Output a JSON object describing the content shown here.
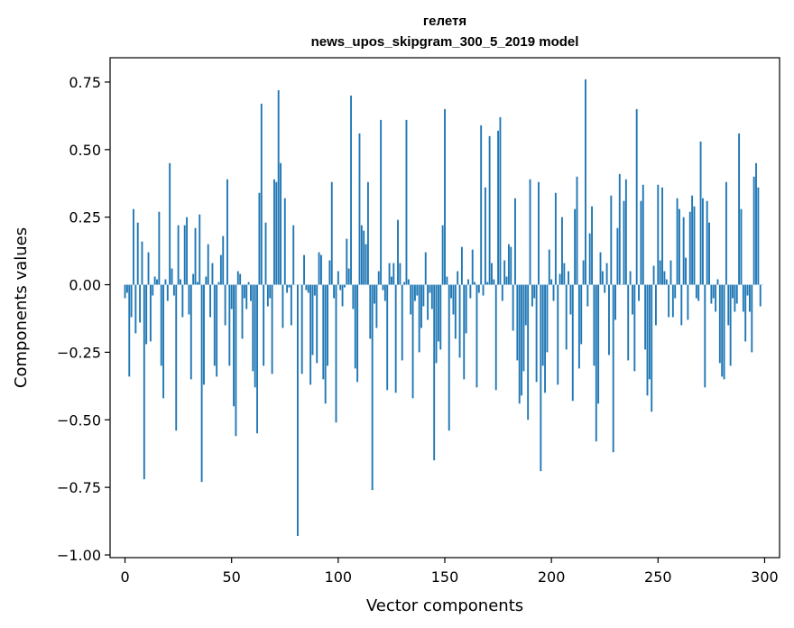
{
  "chart_data": {
    "type": "bar",
    "title": "гелетя",
    "subtitle": "news_upos_skipgram_300_5_2019 model",
    "xlabel": "Vector components",
    "ylabel": "Components values",
    "xlim": [
      -7,
      307
    ],
    "ylim": [
      -1.01,
      0.84
    ],
    "xticks": [
      0,
      50,
      100,
      150,
      200,
      250,
      300
    ],
    "xtick_labels": [
      "0",
      "50",
      "100",
      "150",
      "200",
      "250",
      "300"
    ],
    "yticks": [
      0.75,
      0.5,
      0.25,
      0.0,
      -0.25,
      -0.5,
      -0.75,
      -1.0
    ],
    "ytick_labels": [
      "0.75",
      "0.50",
      "0.25",
      "0.00",
      "−0.25",
      "−0.50",
      "−0.75",
      "−1.00"
    ],
    "grid": false,
    "color": "#1f77b4",
    "x": "0..299",
    "values": [
      -0.05,
      -0.03,
      -0.34,
      -0.12,
      0.28,
      -0.18,
      0.23,
      -0.14,
      0.16,
      -0.72,
      -0.22,
      0.12,
      -0.21,
      -0.04,
      0.03,
      0.02,
      0.27,
      -0.3,
      -0.42,
      0.02,
      -0.06,
      0.45,
      0.06,
      -0.04,
      -0.54,
      0.22,
      0.02,
      -0.12,
      0.22,
      0.25,
      -0.11,
      -0.35,
      0.04,
      0.21,
      0.01,
      0.26,
      -0.73,
      -0.37,
      0.03,
      0.15,
      -0.12,
      0.08,
      -0.3,
      -0.34,
      0.01,
      0.11,
      0.18,
      -0.15,
      0.39,
      -0.3,
      -0.09,
      -0.45,
      -0.56,
      0.05,
      0.04,
      -0.2,
      -0.05,
      -0.09,
      0.01,
      -0.06,
      -0.32,
      -0.38,
      -0.55,
      0.34,
      0.67,
      -0.3,
      0.23,
      -0.08,
      -0.05,
      -0.33,
      0.39,
      0.38,
      0.72,
      0.45,
      -0.16,
      0.32,
      -0.03,
      -0.01,
      -0.15,
      0.22,
      0.0,
      -0.93,
      0.0,
      -0.33,
      0.11,
      -0.02,
      -0.03,
      -0.37,
      -0.26,
      -0.04,
      -0.29,
      0.12,
      0.11,
      -0.35,
      -0.44,
      -0.3,
      0.09,
      0.38,
      -0.05,
      -0.51,
      0.05,
      -0.02,
      -0.08,
      -0.01,
      0.17,
      0.06,
      0.7,
      -0.09,
      -0.31,
      -0.36,
      0.56,
      0.22,
      0.2,
      0.15,
      0.38,
      -0.2,
      -0.76,
      -0.07,
      -0.16,
      0.05,
      0.61,
      -0.02,
      -0.06,
      -0.39,
      0.08,
      0.03,
      0.08,
      -0.4,
      0.24,
      0.08,
      -0.28,
      0.01,
      0.61,
      0.02,
      -0.11,
      -0.42,
      -0.06,
      -0.04,
      -0.25,
      -0.16,
      -0.08,
      0.12,
      -0.13,
      -0.03,
      -0.09,
      -0.65,
      -0.29,
      -0.21,
      -0.24,
      0.22,
      0.65,
      0.03,
      -0.54,
      -0.05,
      -0.11,
      -0.2,
      0.05,
      -0.27,
      0.14,
      -0.35,
      -0.18,
      0.02,
      -0.05,
      0.13,
      0.01,
      -0.38,
      -0.03,
      0.59,
      -0.04,
      0.36,
      0.01,
      0.55,
      0.08,
      0.02,
      -0.39,
      0.57,
      0.62,
      -0.06,
      0.09,
      0.03,
      0.15,
      0.14,
      -0.17,
      0.32,
      -0.28,
      -0.44,
      -0.41,
      -0.32,
      -0.15,
      -0.5,
      0.39,
      -0.08,
      -0.05,
      -0.36,
      0.38,
      -0.69,
      -0.3,
      -0.4,
      -0.25,
      0.13,
      0.02,
      -0.06,
      0.34,
      -0.37,
      0.04,
      0.25,
      0.08,
      -0.24,
      0.05,
      -0.11,
      -0.43,
      0.28,
      0.4,
      -0.31,
      -0.22,
      0.09,
      0.76,
      -0.08,
      0.19,
      0.29,
      -0.3,
      -0.58,
      -0.44,
      0.12,
      0.05,
      -0.03,
      0.08,
      -0.26,
      0.33,
      -0.62,
      -0.13,
      0.21,
      0.41,
      0.0,
      0.31,
      0.39,
      -0.28,
      0.05,
      -0.11,
      -0.32,
      0.65,
      -0.06,
      0.31,
      0.37,
      -0.24,
      -0.41,
      -0.35,
      -0.47,
      0.07,
      -0.15,
      0.37,
      0.09,
      0.36,
      0.05,
      0.02,
      -0.12,
      0.09,
      -0.12,
      -0.05,
      0.32,
      0.28,
      -0.15,
      0.25,
      0.1,
      -0.13,
      0.27,
      0.33,
      0.29,
      -0.05,
      -0.06,
      0.53,
      0.32,
      -0.38,
      0.31,
      0.23,
      -0.07,
      -0.05,
      -0.1,
      0.02,
      -0.29,
      -0.34,
      -0.35,
      0.38,
      -0.15,
      -0.3,
      -0.05,
      -0.1,
      -0.07,
      0.56,
      0.28,
      -0.1,
      -0.21,
      -0.04,
      -0.1,
      -0.25,
      0.4,
      0.45,
      0.36,
      -0.08,
      0.0
    ]
  }
}
